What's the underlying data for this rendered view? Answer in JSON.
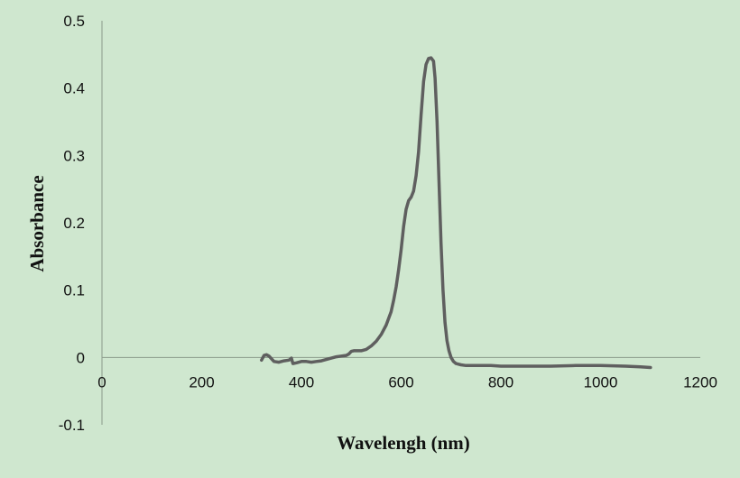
{
  "chart_data": {
    "type": "line",
    "title": "",
    "xlabel": "Wavelengh (nm)",
    "ylabel": "Absorbance",
    "xlim": [
      0,
      1200
    ],
    "ylim": [
      -0.1,
      0.5
    ],
    "x_ticks": [
      "0",
      "200",
      "400",
      "600",
      "800",
      "1000",
      "1200"
    ],
    "y_ticks": [
      "-0.1",
      "0",
      "0.1",
      "0.2",
      "0.3",
      "0.4",
      "0.5"
    ],
    "grid": false,
    "legend": "none",
    "series": [
      {
        "color": "#5f5f5f",
        "x": [
          320,
          325,
          330,
          335,
          345,
          355,
          365,
          375,
          380,
          383,
          390,
          400,
          410,
          420,
          430,
          440,
          450,
          460,
          470,
          480,
          490,
          495,
          500,
          505,
          510,
          520,
          530,
          540,
          550,
          560,
          570,
          580,
          585,
          590,
          595,
          600,
          605,
          610,
          615,
          620,
          625,
          630,
          635,
          640,
          645,
          650,
          655,
          660,
          665,
          668,
          672,
          676,
          680,
          684,
          688,
          692,
          696,
          700,
          705,
          710,
          720,
          730,
          740,
          760,
          780,
          800,
          850,
          900,
          950,
          1000,
          1050,
          1080,
          1100
        ],
        "values": [
          -0.004,
          0.003,
          0.004,
          0.002,
          -0.006,
          -0.007,
          -0.005,
          -0.004,
          -0.001,
          -0.009,
          -0.008,
          -0.006,
          -0.006,
          -0.007,
          -0.006,
          -0.005,
          -0.003,
          -0.001,
          0.001,
          0.002,
          0.003,
          0.005,
          0.009,
          0.01,
          0.01,
          0.01,
          0.012,
          0.017,
          0.024,
          0.034,
          0.048,
          0.068,
          0.085,
          0.105,
          0.13,
          0.16,
          0.195,
          0.22,
          0.233,
          0.238,
          0.247,
          0.27,
          0.305,
          0.36,
          0.41,
          0.435,
          0.444,
          0.445,
          0.44,
          0.415,
          0.35,
          0.26,
          0.17,
          0.1,
          0.052,
          0.025,
          0.01,
          0.0,
          -0.006,
          -0.009,
          -0.011,
          -0.012,
          -0.012,
          -0.012,
          -0.012,
          -0.013,
          -0.013,
          -0.013,
          -0.012,
          -0.012,
          -0.013,
          -0.014,
          -0.015
        ]
      }
    ]
  }
}
